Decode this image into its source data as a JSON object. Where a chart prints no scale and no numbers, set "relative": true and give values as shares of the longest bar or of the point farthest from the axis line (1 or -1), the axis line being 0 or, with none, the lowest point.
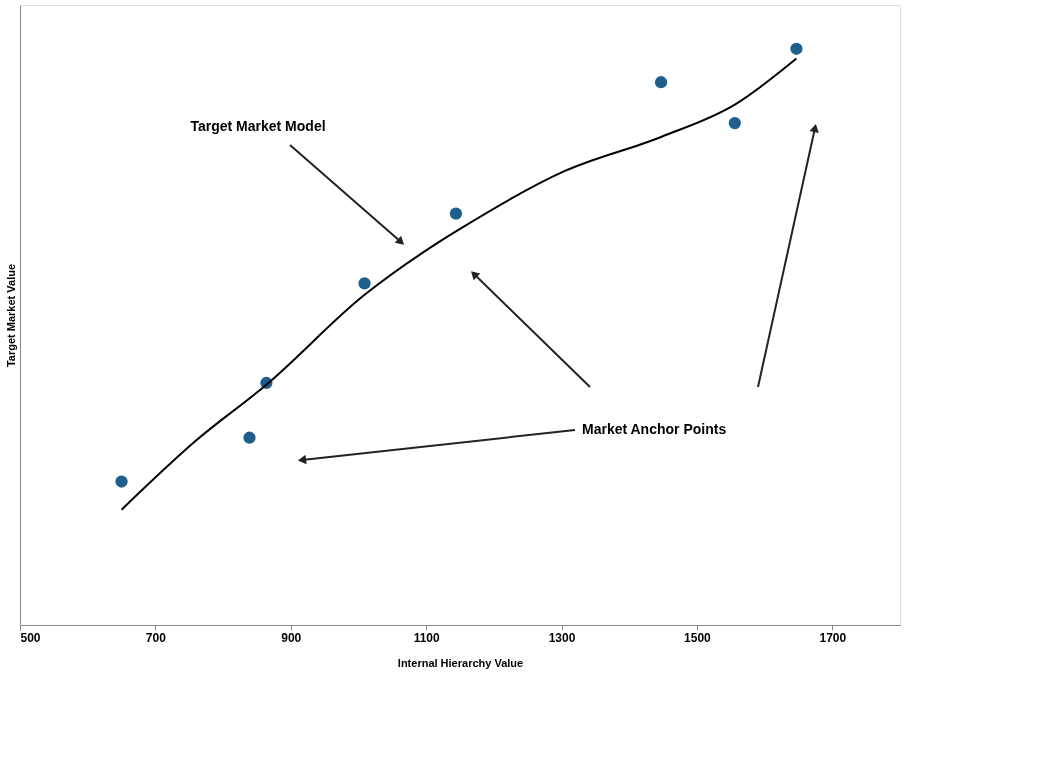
{
  "chart_data": {
    "type": "scatter",
    "relative": true,
    "xlabel": "Internal Hierarchy Value",
    "ylabel": "Target Market Value",
    "xlim": [
      500,
      1800
    ],
    "xticks": [
      500,
      700,
      900,
      1100,
      1300,
      1500,
      1700
    ],
    "grid": false,
    "marker": "circle",
    "series": [
      {
        "color": "#1f5f8b",
        "x": [
          650,
          839,
          864,
          1009,
          1144,
          1447,
          1556,
          1647
        ],
        "values": [
          0.249,
          0.325,
          0.42,
          0.593,
          0.714,
          0.942,
          0.871,
          1.0
        ]
      },
      {
        "type": "line",
        "marker": "none",
        "color": "#000000",
        "x": [
          650,
          760,
          864,
          1009,
          1105,
          1144,
          1305,
          1447,
          1556,
          1647
        ],
        "values": [
          0.2,
          0.32,
          0.417,
          0.573,
          0.654,
          0.683,
          0.788,
          0.847,
          0.903,
          0.983
        ]
      }
    ],
    "annotations": [
      "Target Market Model",
      "Market Anchor Points"
    ]
  }
}
